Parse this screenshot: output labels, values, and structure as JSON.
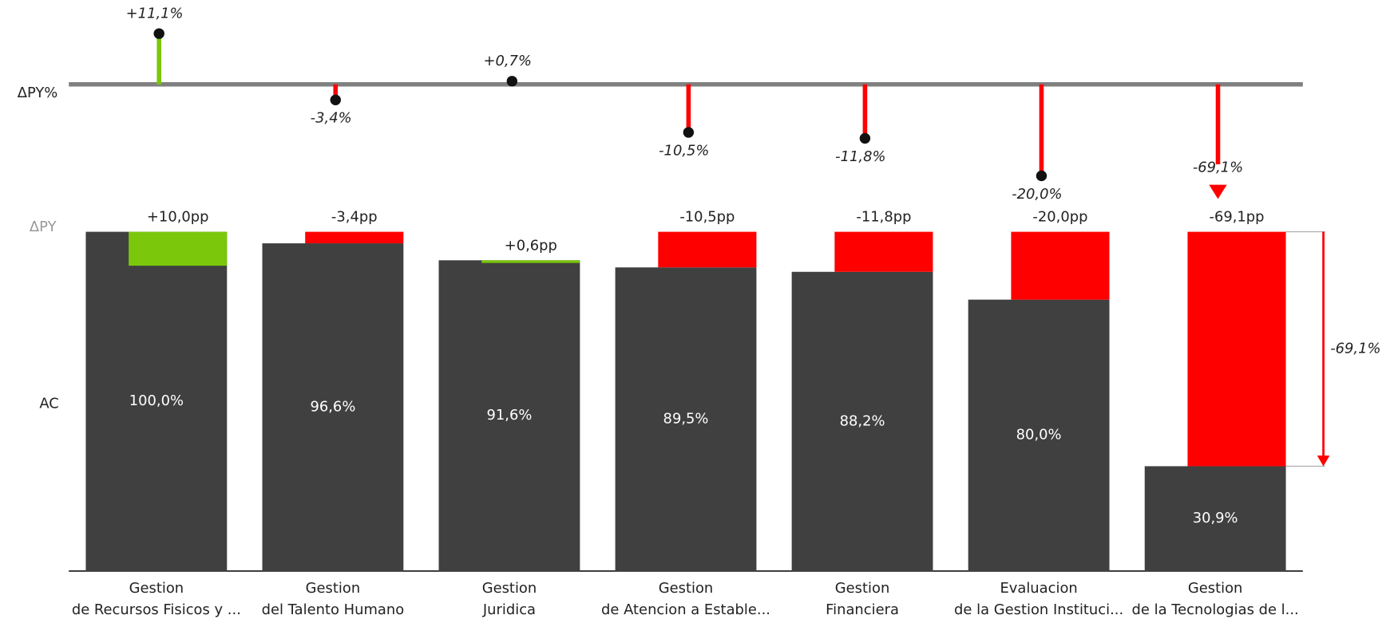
{
  "chart_data": {
    "type": "variance-bar",
    "row_labels": {
      "delta_pct": "ΔPY%",
      "delta": "ΔPY",
      "actual": "AC"
    },
    "categories": [
      [
        "Gestion",
        "de Recursos Fisicos y ..."
      ],
      [
        "Gestion",
        "del Talento Humano"
      ],
      [
        "Gestion",
        "Juridica"
      ],
      [
        "Gestion",
        "de Atencion a Estable..."
      ],
      [
        "Gestion",
        "Financiera"
      ],
      [
        "Evaluacion",
        "de la Gestion Instituci..."
      ],
      [
        "Gestion",
        "de la Tecnologias de l..."
      ]
    ],
    "series": [
      {
        "name": "AC",
        "color": "#404040",
        "values": [
          100.0,
          96.6,
          91.6,
          89.5,
          88.2,
          80.0,
          30.9
        ],
        "value_labels": [
          "100,0%",
          "96,6%",
          "91,6%",
          "89,5%",
          "88,2%",
          "80,0%",
          "30,9%"
        ]
      },
      {
        "name": "ΔPY",
        "values": [
          10.0,
          -3.4,
          0.6,
          -10.5,
          -11.8,
          -20.0,
          -69.1
        ],
        "value_labels": [
          "+10,0pp",
          "-3,4pp",
          "+0,6pp",
          "-10,5pp",
          "-11,8pp",
          "-20,0pp",
          "-69,1pp"
        ]
      },
      {
        "name": "ΔPY%",
        "values": [
          11.1,
          -3.4,
          0.7,
          -10.5,
          -11.8,
          -20.0,
          -69.1
        ],
        "value_labels": [
          "+11,1%",
          "-3,4%",
          "+0,7%",
          "-10,5%",
          "-11,8%",
          "-20,0%",
          "-69,1%"
        ]
      }
    ],
    "positive_color": "#7ac70c",
    "negative_color": "#ff0000",
    "annotation": {
      "label": "-69,1%",
      "index": 6
    }
  }
}
